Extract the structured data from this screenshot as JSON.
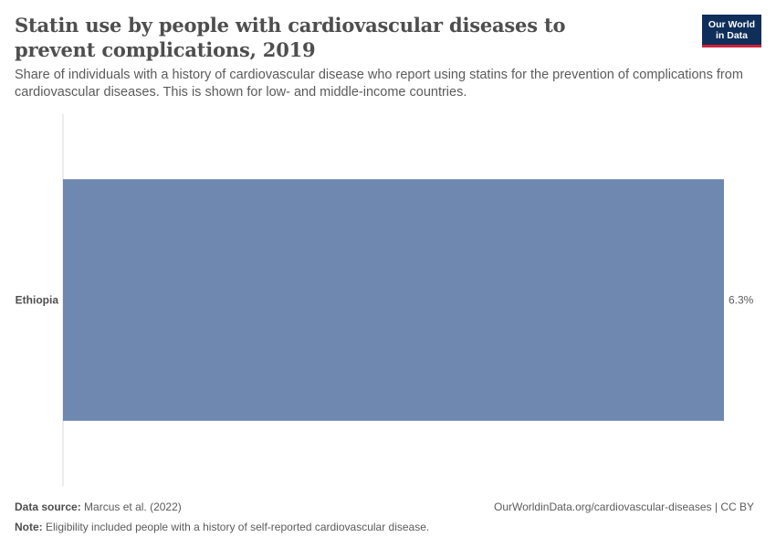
{
  "header": {
    "title": "Statin use by people with cardiovascular diseases to prevent complications, 2019",
    "subtitle": "Share of individuals with a history of cardiovascular disease who report using statins for the prevention of complications from cardiovascular diseases. This is shown for low- and middle-income countries.",
    "logo_line1": "Our World",
    "logo_line2": "in Data"
  },
  "footer": {
    "source_label": "Data source:",
    "source_text": "Marcus et al. (2022)",
    "url_text": "OurWorldinData.org/cardiovascular-diseases | CC BY",
    "note_label": "Note:",
    "note_text": "Eligibility included people with a history of self-reported cardiovascular disease."
  },
  "colors": {
    "bar": "#6f88b0",
    "axis": "#d8d8d8"
  },
  "chart_data": {
    "type": "bar",
    "orientation": "horizontal",
    "categories": [
      "Ethiopia"
    ],
    "values": [
      6.3
    ],
    "value_labels": [
      "6.3%"
    ],
    "unit": "%",
    "xlim": [
      0,
      6.3
    ]
  }
}
